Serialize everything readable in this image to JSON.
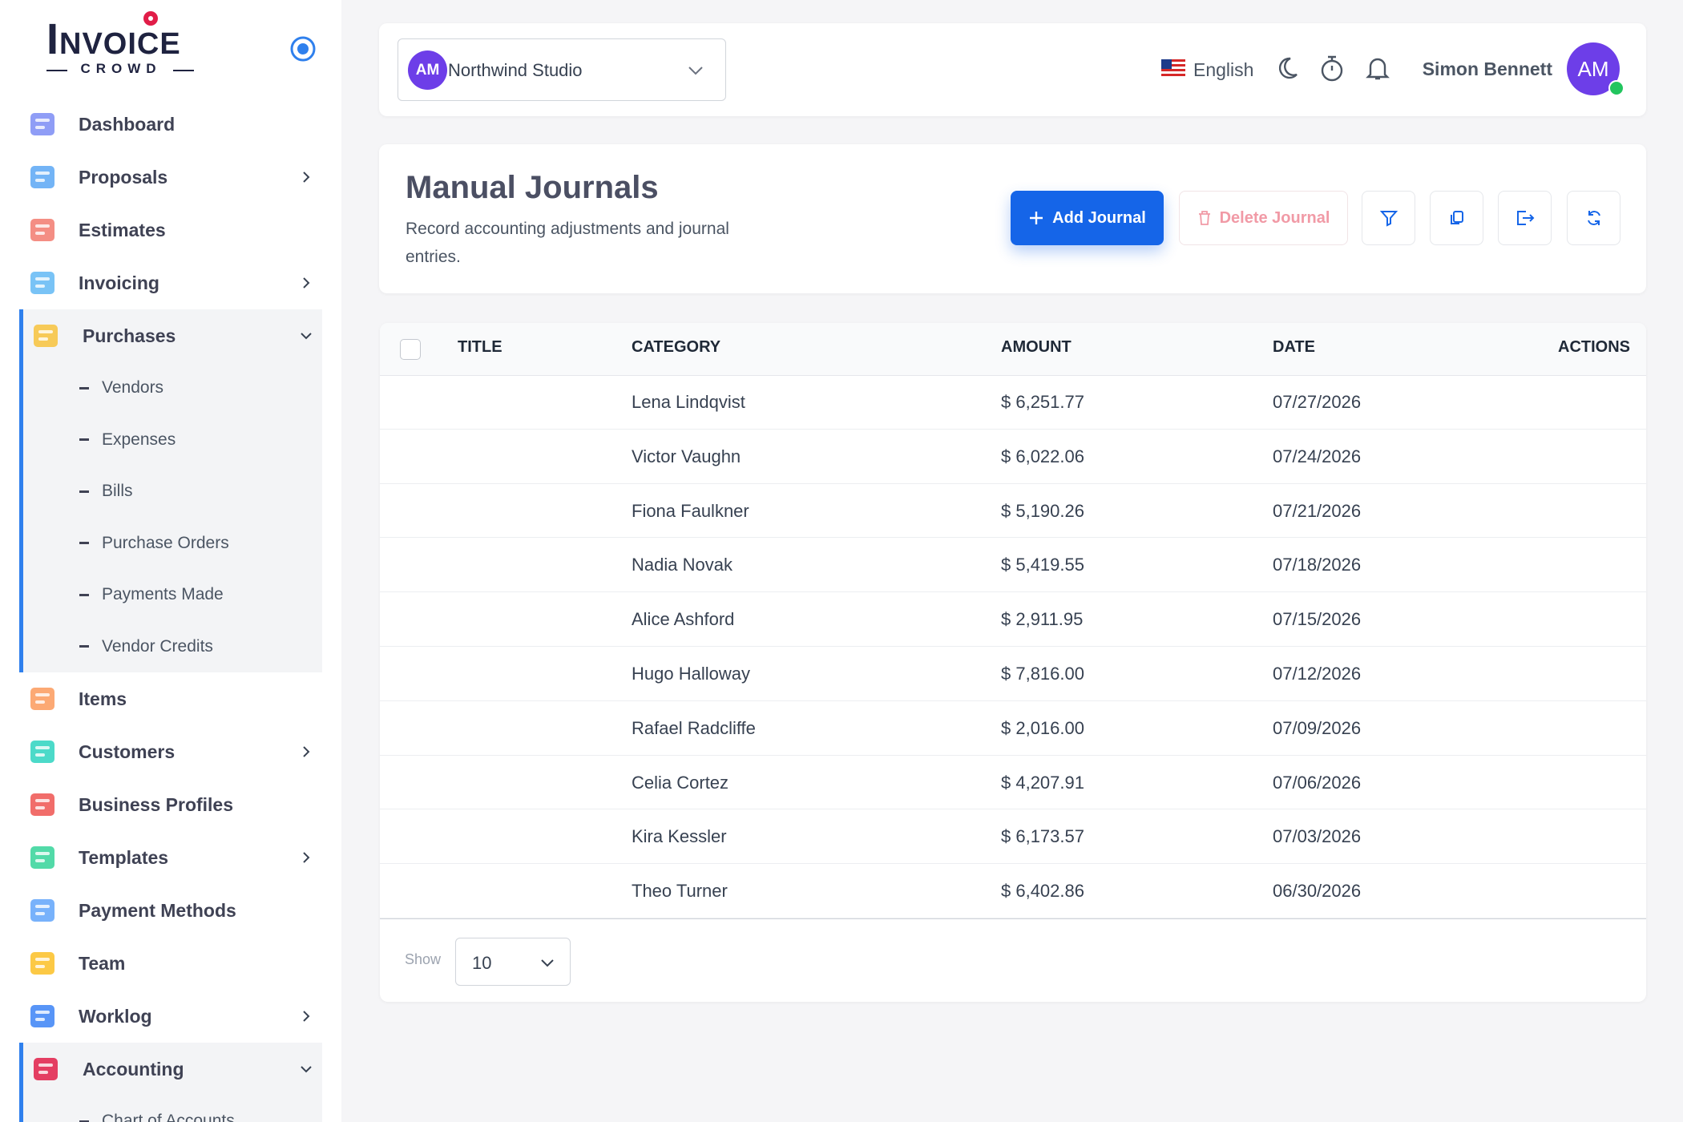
{
  "sidebar": {
    "logo": {
      "name": "Invoice",
      "tagline": "CROWD"
    },
    "nav": [
      {
        "label": "Dashboard"
      },
      {
        "label": "Proposals",
        "has_submenu": true
      },
      {
        "label": "Estimates"
      },
      {
        "label": "Invoicing",
        "has_submenu": true
      },
      {
        "label": "Purchases",
        "expanded": true,
        "children": [
          "Vendors",
          "Expenses",
          "Bills",
          "Purchase Orders",
          "Payments Made",
          "Vendor Credits"
        ]
      },
      {
        "label": "Items"
      },
      {
        "label": "Customers",
        "has_submenu": true
      },
      {
        "label": "Business Profiles"
      },
      {
        "label": "Templates",
        "has_submenu": true
      },
      {
        "label": "Payment Methods"
      },
      {
        "label": "Team"
      },
      {
        "label": "Worklog",
        "has_submenu": true
      },
      {
        "label": "Accounting",
        "expanded": true,
        "children": [
          "Chart of Accounts"
        ]
      }
    ]
  },
  "topbar": {
    "org_initials": "AM",
    "org_name": "Northwind Studio",
    "language": "English",
    "user_name": "Simon Bennett",
    "user_initials": "AM"
  },
  "page_header": {
    "title": "Manual Journals",
    "subtitle": "Record accounting adjustments and journal entries.",
    "buttons": {
      "add": "Add Journal",
      "delete": "Delete Journal"
    }
  },
  "table": {
    "columns": [
      "TITLE",
      "CATEGORY",
      "AMOUNT",
      "DATE",
      "ACTIONS"
    ],
    "rows": [
      {
        "category": "Lena Lindqvist",
        "amount": "$ 6,251.77",
        "date": "07/27/2026"
      },
      {
        "category": "Victor Vaughn",
        "amount": "$ 6,022.06",
        "date": "07/24/2026"
      },
      {
        "category": "Fiona Faulkner",
        "amount": "$ 5,190.26",
        "date": "07/21/2026"
      },
      {
        "category": "Nadia Novak",
        "amount": "$ 5,419.55",
        "date": "07/18/2026"
      },
      {
        "category": "Alice Ashford",
        "amount": "$ 2,911.95",
        "date": "07/15/2026"
      },
      {
        "category": "Hugo Halloway",
        "amount": "$ 7,816.00",
        "date": "07/12/2026"
      },
      {
        "category": "Rafael Radcliffe",
        "amount": "$ 2,016.00",
        "date": "07/09/2026"
      },
      {
        "category": "Celia Cortez",
        "amount": "$ 4,207.91",
        "date": "07/06/2026"
      },
      {
        "category": "Kira Kessler",
        "amount": "$ 6,173.57",
        "date": "07/03/2026"
      },
      {
        "category": "Theo Turner",
        "amount": "$ 6,402.86",
        "date": "06/30/2026"
      }
    ],
    "footer": {
      "show_label": "Show",
      "page_size": "10"
    }
  }
}
